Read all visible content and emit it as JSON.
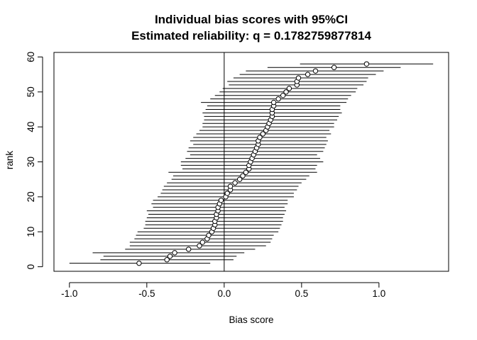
{
  "chart_data": {
    "type": "scatter",
    "title": "Individual bias scores with 95%CI",
    "subtitle": "Estimated reliability: q = 0.1782759877814",
    "xlabel": "Bias score",
    "ylabel": "rank",
    "xlim": [
      -1.1,
      1.45
    ],
    "ylim": [
      -1.3,
      61.3
    ],
    "x_ticks": [
      -1.0,
      -0.5,
      0.0,
      0.5,
      1.0
    ],
    "x_tick_labels": [
      "-1.0",
      "-0.5",
      "0.0",
      "0.5",
      "1.0"
    ],
    "y_ticks": [
      0,
      10,
      20,
      30,
      40,
      50,
      60
    ],
    "y_tick_labels": [
      "0",
      "10",
      "20",
      "30",
      "40",
      "50",
      "60"
    ],
    "reference_line_x": 0,
    "grid": false,
    "series": [
      {
        "points": [
          {
            "rank": 1,
            "score": -0.55,
            "lower": -1.0,
            "upper": -0.09
          },
          {
            "rank": 2,
            "score": -0.37,
            "lower": -0.8,
            "upper": 0.06
          },
          {
            "rank": 3,
            "score": -0.35,
            "lower": -0.78,
            "upper": 0.08
          },
          {
            "rank": 4,
            "score": -0.32,
            "lower": -0.85,
            "upper": 0.13
          },
          {
            "rank": 5,
            "score": -0.23,
            "lower": -0.64,
            "upper": 0.2
          },
          {
            "rank": 6,
            "score": -0.16,
            "lower": -0.61,
            "upper": 0.27
          },
          {
            "rank": 7,
            "score": -0.14,
            "lower": -0.61,
            "upper": 0.3
          },
          {
            "rank": 8,
            "score": -0.11,
            "lower": -0.58,
            "upper": 0.31
          },
          {
            "rank": 9,
            "score": -0.1,
            "lower": -0.57,
            "upper": 0.32
          },
          {
            "rank": 10,
            "score": -0.08,
            "lower": -0.56,
            "upper": 0.35
          },
          {
            "rank": 11,
            "score": -0.07,
            "lower": -0.52,
            "upper": 0.36
          },
          {
            "rank": 12,
            "score": -0.06,
            "lower": -0.51,
            "upper": 0.37
          },
          {
            "rank": 13,
            "score": -0.06,
            "lower": -0.51,
            "upper": 0.38
          },
          {
            "rank": 14,
            "score": -0.05,
            "lower": -0.5,
            "upper": 0.38
          },
          {
            "rank": 15,
            "score": -0.05,
            "lower": -0.49,
            "upper": 0.39
          },
          {
            "rank": 16,
            "score": -0.04,
            "lower": -0.5,
            "upper": 0.4
          },
          {
            "rank": 17,
            "score": -0.04,
            "lower": -0.46,
            "upper": 0.39
          },
          {
            "rank": 18,
            "score": -0.03,
            "lower": -0.47,
            "upper": 0.41
          },
          {
            "rank": 19,
            "score": -0.02,
            "lower": -0.46,
            "upper": 0.41
          },
          {
            "rank": 20,
            "score": 0.01,
            "lower": -0.43,
            "upper": 0.45
          },
          {
            "rank": 21,
            "score": 0.02,
            "lower": -0.41,
            "upper": 0.45
          },
          {
            "rank": 22,
            "score": 0.04,
            "lower": -0.4,
            "upper": 0.47
          },
          {
            "rank": 23,
            "score": 0.04,
            "lower": -0.39,
            "upper": 0.48
          },
          {
            "rank": 24,
            "score": 0.07,
            "lower": -0.37,
            "upper": 0.5
          },
          {
            "rank": 25,
            "score": 0.1,
            "lower": -0.34,
            "upper": 0.53
          },
          {
            "rank": 26,
            "score": 0.12,
            "lower": -0.33,
            "upper": 0.55
          },
          {
            "rank": 27,
            "score": 0.14,
            "lower": -0.36,
            "upper": 0.6
          },
          {
            "rank": 28,
            "score": 0.16,
            "lower": -0.27,
            "upper": 0.59
          },
          {
            "rank": 29,
            "score": 0.16,
            "lower": -0.28,
            "upper": 0.6
          },
          {
            "rank": 30,
            "score": 0.17,
            "lower": -0.28,
            "upper": 0.64
          },
          {
            "rank": 31,
            "score": 0.18,
            "lower": -0.25,
            "upper": 0.62
          },
          {
            "rank": 32,
            "score": 0.19,
            "lower": -0.22,
            "upper": 0.6
          },
          {
            "rank": 33,
            "score": 0.2,
            "lower": -0.24,
            "upper": 0.64
          },
          {
            "rank": 34,
            "score": 0.21,
            "lower": -0.23,
            "upper": 0.65
          },
          {
            "rank": 35,
            "score": 0.22,
            "lower": -0.2,
            "upper": 0.66
          },
          {
            "rank": 36,
            "score": 0.22,
            "lower": -0.22,
            "upper": 0.67
          },
          {
            "rank": 37,
            "score": 0.23,
            "lower": -0.2,
            "upper": 0.66
          },
          {
            "rank": 38,
            "score": 0.25,
            "lower": -0.18,
            "upper": 0.69
          },
          {
            "rank": 39,
            "score": 0.27,
            "lower": -0.16,
            "upper": 0.68
          },
          {
            "rank": 40,
            "score": 0.28,
            "lower": -0.14,
            "upper": 0.71
          },
          {
            "rank": 41,
            "score": 0.29,
            "lower": -0.14,
            "upper": 0.71
          },
          {
            "rank": 42,
            "score": 0.3,
            "lower": -0.13,
            "upper": 0.73
          },
          {
            "rank": 43,
            "score": 0.31,
            "lower": -0.13,
            "upper": 0.74
          },
          {
            "rank": 44,
            "score": 0.31,
            "lower": -0.14,
            "upper": 0.76
          },
          {
            "rank": 45,
            "score": 0.31,
            "lower": -0.12,
            "upper": 0.75
          },
          {
            "rank": 46,
            "score": 0.32,
            "lower": -0.11,
            "upper": 0.75
          },
          {
            "rank": 47,
            "score": 0.32,
            "lower": -0.15,
            "upper": 0.79
          },
          {
            "rank": 48,
            "score": 0.35,
            "lower": -0.09,
            "upper": 0.8
          },
          {
            "rank": 49,
            "score": 0.38,
            "lower": -0.06,
            "upper": 0.82
          },
          {
            "rank": 50,
            "score": 0.4,
            "lower": -0.03,
            "upper": 0.85
          },
          {
            "rank": 51,
            "score": 0.42,
            "lower": -0.01,
            "upper": 0.86
          },
          {
            "rank": 52,
            "score": 0.47,
            "lower": 0.03,
            "upper": 0.9
          },
          {
            "rank": 53,
            "score": 0.47,
            "lower": 0.02,
            "upper": 0.92
          },
          {
            "rank": 54,
            "score": 0.48,
            "lower": 0.06,
            "upper": 0.93
          },
          {
            "rank": 55,
            "score": 0.54,
            "lower": 0.1,
            "upper": 0.98
          },
          {
            "rank": 56,
            "score": 0.59,
            "lower": 0.14,
            "upper": 1.03
          },
          {
            "rank": 57,
            "score": 0.71,
            "lower": 0.28,
            "upper": 1.14
          },
          {
            "rank": 58,
            "score": 0.92,
            "lower": 0.49,
            "upper": 1.35
          }
        ]
      }
    ]
  }
}
